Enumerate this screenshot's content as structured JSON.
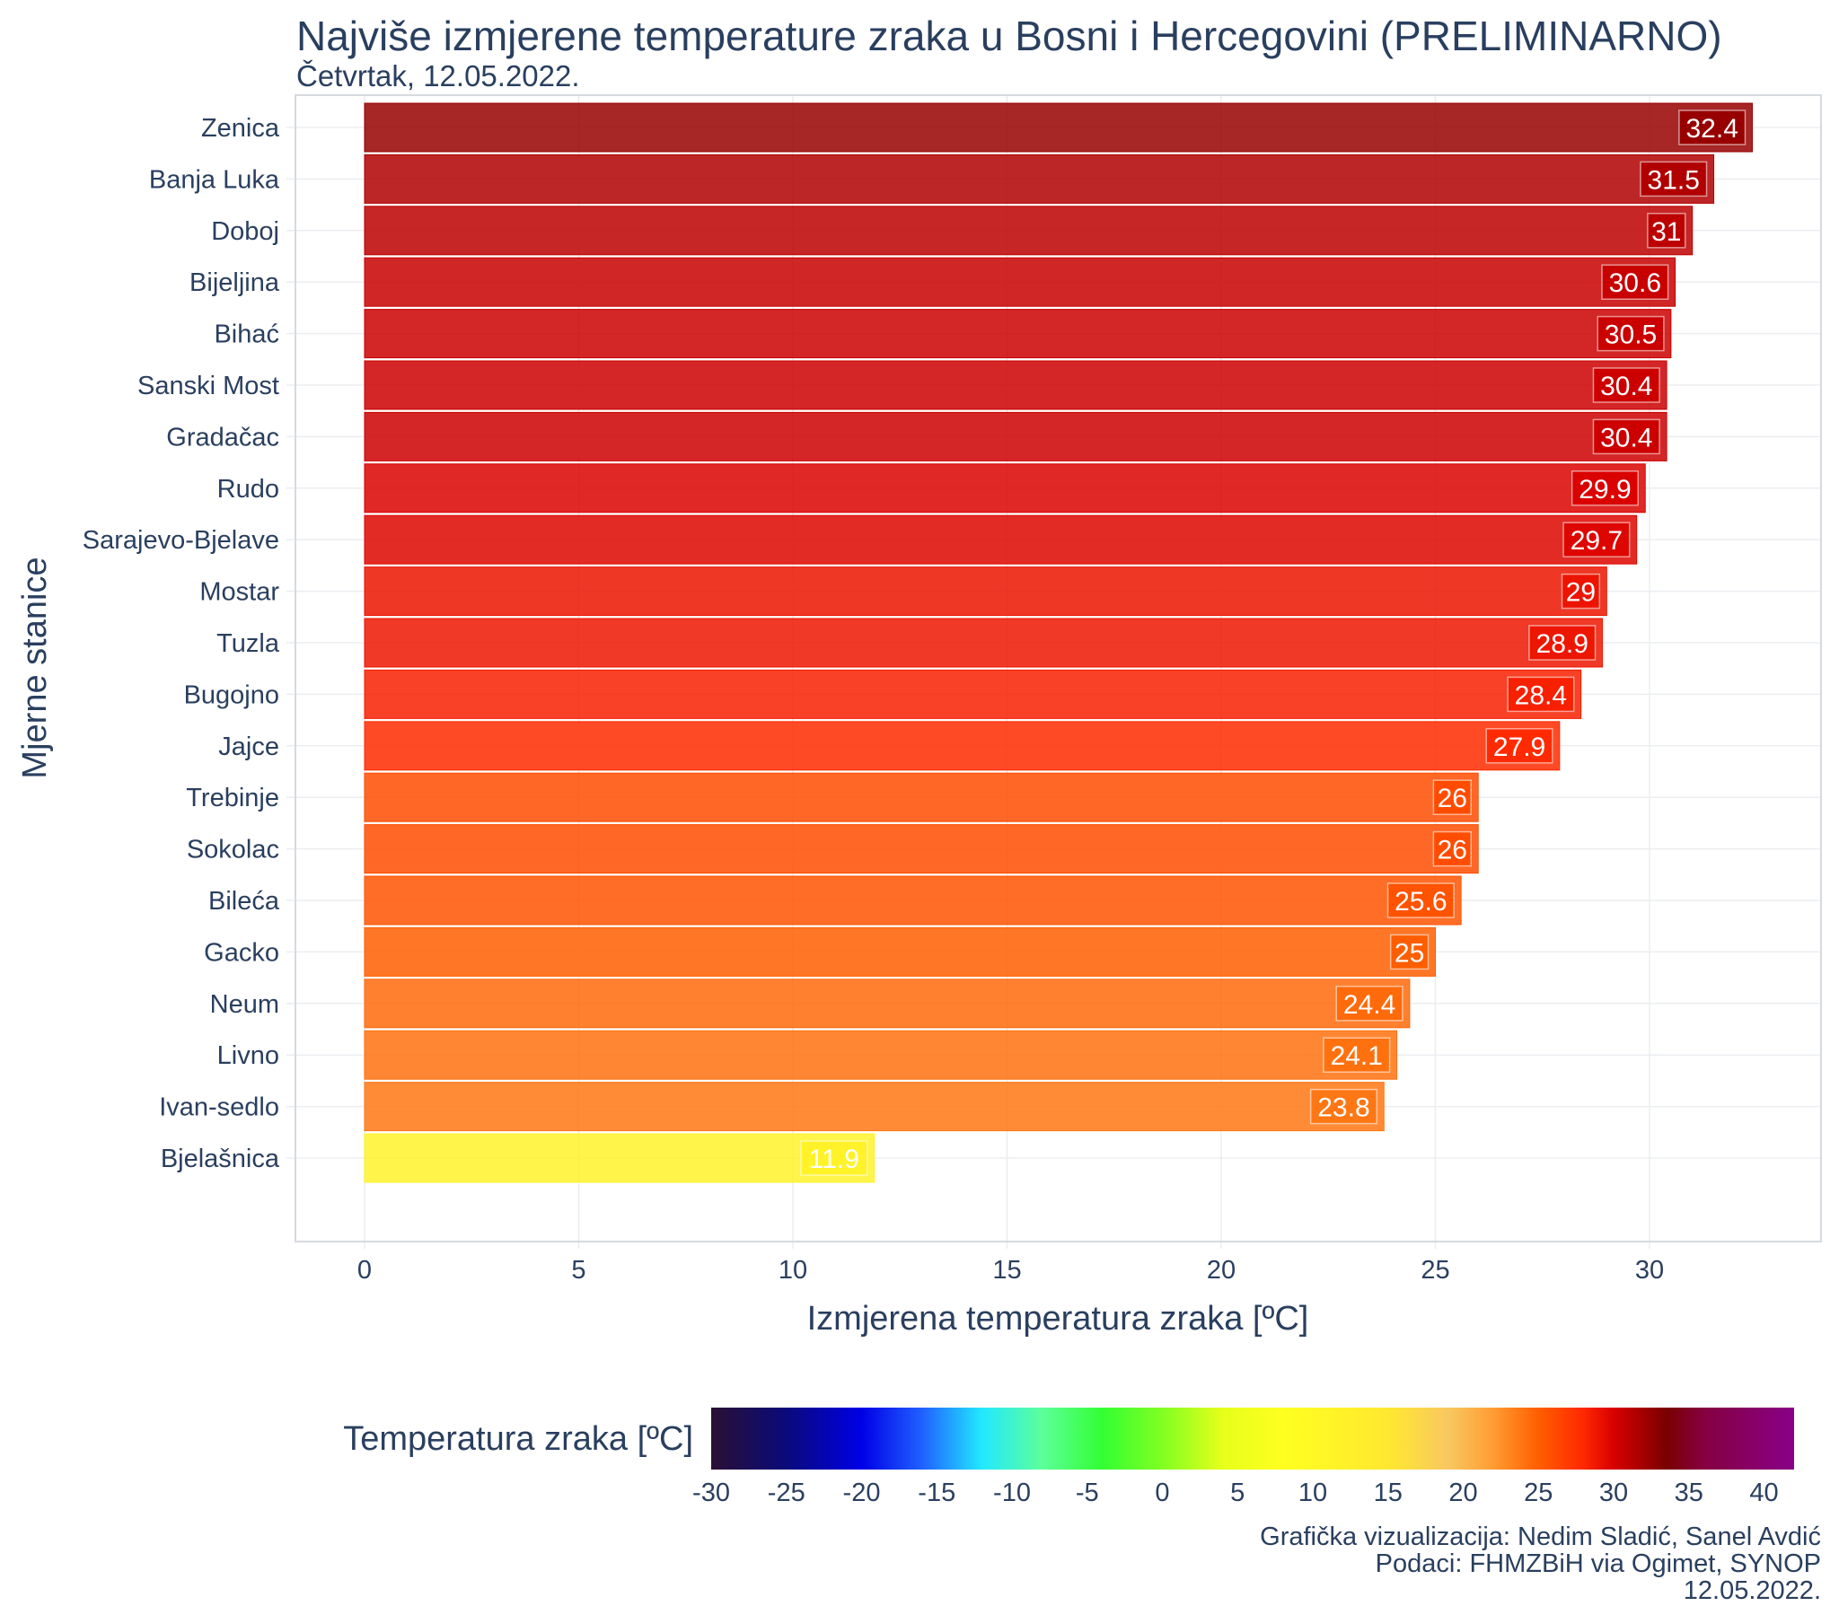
{
  "chart_data": {
    "type": "bar",
    "orientation": "horizontal",
    "title": "Najviše izmjerene temperature zraka u Bosni i Hercegovini (PRELIMINARNO)",
    "subtitle": "Četvrtak, 12.05.2022.",
    "xlabel": "Izmjerena temperatura zraka [ºC]",
    "ylabel": "Mjerne stanice",
    "xlim": [
      -1.6,
      34.2
    ],
    "xticks": [
      0,
      5,
      10,
      15,
      20,
      25,
      30
    ],
    "grid": true,
    "categories": [
      "Zenica",
      "Banja Luka",
      "Doboj",
      "Bijeljina",
      "Bihać",
      "Sanski Most",
      "Gradačac",
      "Rudo",
      "Sarajevo-Bjelave",
      "Mostar",
      "Tuzla",
      "Bugojno",
      "Jajce",
      "Trebinje",
      "Sokolac",
      "Bileća",
      "Gacko",
      "Neum",
      "Livno",
      "Ivan-sedlo",
      "Bjelašnica"
    ],
    "values": [
      32.4,
      31.5,
      31,
      30.6,
      30.5,
      30.4,
      30.4,
      29.9,
      29.7,
      29,
      28.9,
      28.4,
      27.9,
      26,
      26,
      25.6,
      25,
      24.4,
      24.1,
      23.8,
      11.9
    ],
    "data_labels": [
      "32.4",
      "31.5",
      "31",
      "30.6",
      "30.5",
      "30.4",
      "30.4",
      "29.9",
      "29.7",
      "29",
      "28.9",
      "28.4",
      "27.9",
      "26",
      "26",
      "25.6",
      "25",
      "24.4",
      "24.1",
      "23.8",
      "11.9"
    ],
    "colorbar": {
      "title": "Temperatura zraka [ºC]",
      "range": [
        -30,
        42
      ],
      "ticks": [
        -30,
        -25,
        -20,
        -15,
        -10,
        -5,
        0,
        5,
        10,
        15,
        20,
        25,
        30,
        35,
        40
      ],
      "tick_labels": [
        "-30",
        "-25",
        "-20",
        "-15",
        "-10",
        "-5",
        "0",
        "5",
        "10",
        "15",
        "20",
        "25",
        "30",
        "35",
        "40"
      ],
      "colorscale": [
        [
          -30,
          "#2a1033"
        ],
        [
          -25,
          "#0a0a7a"
        ],
        [
          -20,
          "#0000e6"
        ],
        [
          -16,
          "#2060ff"
        ],
        [
          -12,
          "#22e8ff"
        ],
        [
          -8,
          "#5cff9a"
        ],
        [
          -4,
          "#33ff33"
        ],
        [
          0,
          "#80ff22"
        ],
        [
          4,
          "#e6ff1a"
        ],
        [
          8,
          "#ffff20"
        ],
        [
          15,
          "#ffe830"
        ],
        [
          19,
          "#f8c860"
        ],
        [
          22,
          "#ff9c33"
        ],
        [
          25,
          "#ff5e00"
        ],
        [
          28,
          "#ff2800"
        ],
        [
          30,
          "#d80000"
        ],
        [
          33.5,
          "#7a0000"
        ],
        [
          36,
          "#860040"
        ],
        [
          42,
          "#880088"
        ]
      ]
    }
  },
  "caption": {
    "line1": "Grafička vizualizacija: Nedim Sladić, Sanel Avdić",
    "line2": "Podaci: FHMZBiH via Ogimet, SYNOP",
    "line3": "12.05.2022."
  },
  "colors": {
    "text": "#2a3f5f",
    "grid": "#ebedf0",
    "panel_border": "#d6d9de"
  }
}
